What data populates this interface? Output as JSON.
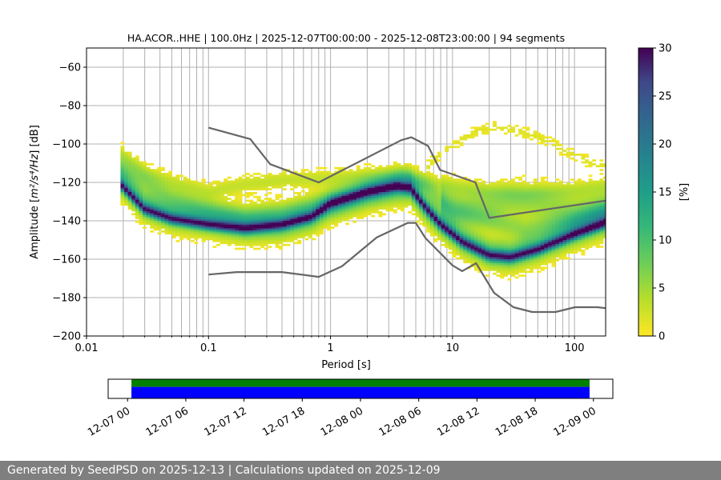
{
  "chart_data": [
    {
      "type": "heatmap",
      "title": "HA.ACOR..HHE | 100.0Hz | 2025-12-07T00:00:00 - 2025-12-08T23:00:00 | 94 segments",
      "xlabel": "Period [s]",
      "ylabel_prefix": "Amplitude [",
      "ylabel_unit_math": "m²/s⁴/Hz",
      "ylabel_suffix": "] [dB]",
      "xscale": "log",
      "xlim": [
        0.01,
        180
      ],
      "ylim": [
        -200,
        -50
      ],
      "xticks": [
        {
          "value": 0.01,
          "label": "0.01"
        },
        {
          "value": 0.1,
          "label": "0.1"
        },
        {
          "value": 1,
          "label": "1"
        },
        {
          "value": 10,
          "label": "10"
        },
        {
          "value": 100,
          "label": "100"
        }
      ],
      "yticks": [
        {
          "value": -60,
          "label": "−60"
        },
        {
          "value": -80,
          "label": "−80"
        },
        {
          "value": -100,
          "label": "−100"
        },
        {
          "value": -120,
          "label": "−120"
        },
        {
          "value": -140,
          "label": "−140"
        },
        {
          "value": -160,
          "label": "−160"
        },
        {
          "value": -180,
          "label": "−180"
        },
        {
          "value": -200,
          "label": "−200"
        }
      ],
      "colorbar": {
        "label": "[%]",
        "range": [
          0,
          30
        ],
        "ticks": [
          {
            "value": 0,
            "label": "0"
          },
          {
            "value": 5,
            "label": "5"
          },
          {
            "value": 10,
            "label": "10"
          },
          {
            "value": 15,
            "label": "15"
          },
          {
            "value": 20,
            "label": "20"
          },
          {
            "value": 25,
            "label": "25"
          },
          {
            "value": 30,
            "label": "30"
          }
        ]
      },
      "noise_models": [
        {
          "name": "high-noise-model",
          "x": [
            0.1,
            0.22,
            0.32,
            0.8,
            3.8,
            4.6,
            6.3,
            7.9,
            15.4,
            20,
            180
          ],
          "y": [
            -91.5,
            -97.4,
            -110.5,
            -120,
            -98,
            -96.5,
            -101,
            -113.5,
            -120,
            -138.5,
            -129.5
          ]
        },
        {
          "name": "low-noise-model",
          "x": [
            0.1,
            0.17,
            0.4,
            0.8,
            1.24,
            2.4,
            4.3,
            5,
            6,
            10,
            12,
            15.6,
            21.9,
            31.6,
            45,
            70,
            101,
            154,
            180
          ],
          "y": [
            -168,
            -166.7,
            -166.7,
            -169.2,
            -163.7,
            -148.6,
            -141.1,
            -141.1,
            -149,
            -163.2,
            -166.2,
            -162.1,
            -177.5,
            -185,
            -187.5,
            -187.5,
            -185,
            -185,
            -185.5
          ]
        }
      ],
      "psd_bands": [
        {
          "name": "main-band",
          "x": [
            0.019,
            0.03,
            0.05,
            0.1,
            0.2,
            0.4,
            0.7,
            1,
            2,
            3.5,
            4.5,
            6,
            8,
            12,
            20,
            30,
            50,
            100,
            180
          ],
          "y": [
            -119,
            -132,
            -137,
            -140,
            -143,
            -142,
            -138,
            -132,
            -126,
            -123,
            -123,
            -133,
            -141,
            -150,
            -157,
            -158,
            -154,
            -146,
            -140
          ],
          "spread": 5,
          "occ": 11
        },
        {
          "name": "core-ridge",
          "x": [
            0.019,
            0.03,
            0.05,
            0.1,
            0.2,
            0.4,
            0.7,
            1,
            2,
            3.5,
            4.5,
            6,
            8,
            12,
            20,
            30,
            50,
            100,
            180
          ],
          "y": [
            -121,
            -134,
            -139,
            -142,
            -144,
            -142,
            -138,
            -131,
            -125,
            -122,
            -123,
            -133,
            -142,
            -151,
            -158,
            -159,
            -155,
            -147,
            -141
          ],
          "spread": 1.8,
          "occ": 20
        },
        {
          "name": "upper-band",
          "x": [
            0.019,
            0.03,
            0.05,
            0.1,
            0.2,
            0.4,
            1,
            2,
            4,
            6,
            10,
            20,
            40,
            100,
            180
          ],
          "y": [
            -105,
            -115,
            -120,
            -125,
            -121,
            -119,
            -118,
            -117,
            -117,
            -120,
            -122,
            -125,
            -126,
            -124,
            -122
          ],
          "spread": 3,
          "occ": 3
        },
        {
          "name": "mid-band",
          "x": [
            0.019,
            0.05,
            0.1,
            0.2,
            0.4,
            1,
            2,
            4,
            6,
            10,
            20,
            40,
            100,
            180
          ],
          "y": [
            -112,
            -128,
            -134,
            -138,
            -136,
            -130,
            -124,
            -118,
            -122,
            -135,
            -140,
            -145,
            -140,
            -135
          ],
          "spread": 4,
          "occ": 5
        },
        {
          "name": "high-period-arc",
          "x": [
            6,
            10,
            15,
            22,
            30,
            50,
            100,
            180
          ],
          "y": [
            -112,
            -101,
            -94,
            -91,
            -92,
            -96,
            -106,
            -112
          ],
          "spread": 2,
          "occ": 1.5
        },
        {
          "name": "wide-lower-band",
          "x": [
            8,
            12,
            20,
            30,
            50,
            100,
            180
          ],
          "y": [
            -130,
            -133,
            -132,
            -130,
            -131,
            -135,
            -133
          ],
          "spread": 6,
          "occ": 5
        }
      ]
    },
    {
      "type": "timeline",
      "ticks": [
        {
          "label": "12-07 00"
        },
        {
          "label": "12-07 06"
        },
        {
          "label": "12-07 12"
        },
        {
          "label": "12-07 18"
        },
        {
          "label": "12-08 00"
        },
        {
          "label": "12-08 06"
        },
        {
          "label": "12-08 12"
        },
        {
          "label": "12-08 18"
        },
        {
          "label": "12-09 00"
        }
      ],
      "range_hours": [
        -2,
        50
      ],
      "tick_hours": [
        0,
        6,
        12,
        18,
        24,
        30,
        36,
        42,
        48
      ],
      "segments": [
        {
          "name": "used-data",
          "start_hour": 0.4,
          "end_hour": 47.6,
          "color": "#008000"
        },
        {
          "name": "available-data",
          "start_hour": 0.4,
          "end_hour": 47.6,
          "color": "#0000ff"
        }
      ]
    }
  ],
  "footer": {
    "text": "Generated by SeedPSD on 2025-12-13 | Calculations updated on 2025-12-09"
  }
}
